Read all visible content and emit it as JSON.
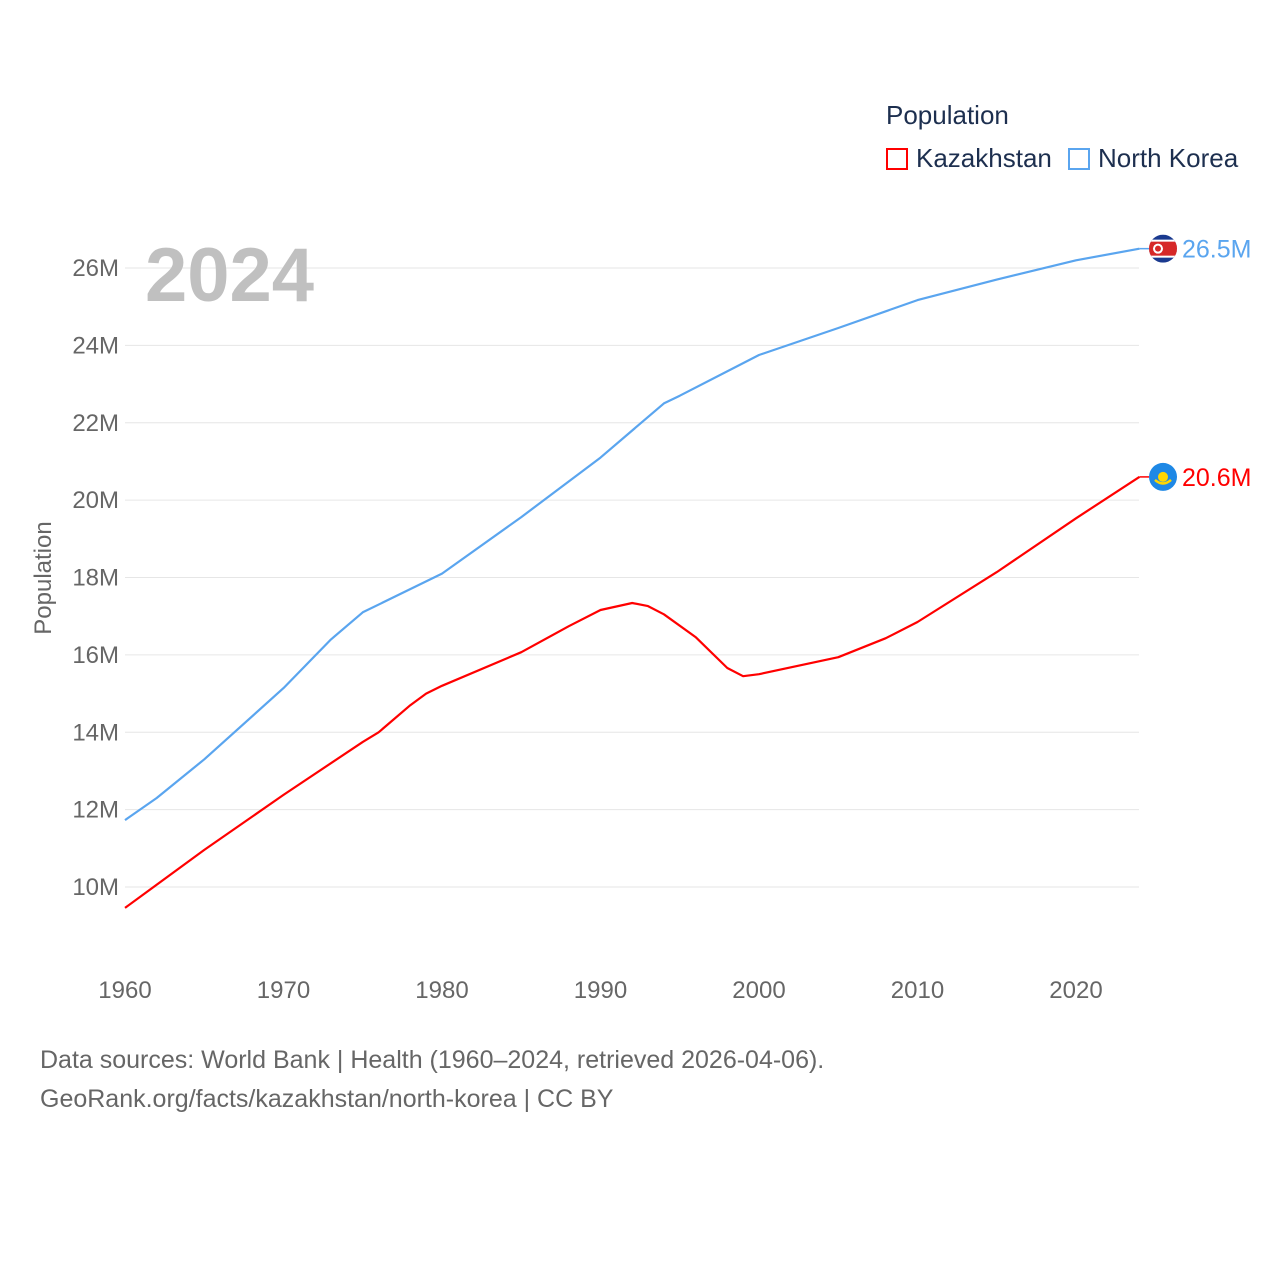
{
  "chart_data": {
    "type": "line",
    "title": "",
    "year_label": "2024",
    "xlabel": "",
    "ylabel": "Population",
    "xlim": [
      1960,
      2024
    ],
    "ylim": [
      9,
      27
    ],
    "x_ticks": [
      "1960",
      "1970",
      "1980",
      "1990",
      "2000",
      "2010",
      "2020"
    ],
    "y_ticks": [
      "10M",
      "12M",
      "14M",
      "16M",
      "18M",
      "20M",
      "22M",
      "24M",
      "26M"
    ],
    "grid": "horizontal",
    "legend": {
      "title": "Population",
      "placement": "top-right"
    },
    "series": [
      {
        "name": "Kazakhstan",
        "color": "#ff0000",
        "end_label": "20.6M",
        "flag": "kazakhstan-flag",
        "points": [
          [
            1960,
            9.46
          ],
          [
            1965,
            10.96
          ],
          [
            1970,
            12.38
          ],
          [
            1975,
            13.75
          ],
          [
            1976,
            14.0
          ],
          [
            1978,
            14.7
          ],
          [
            1979,
            15.0
          ],
          [
            1980,
            15.2
          ],
          [
            1985,
            16.07
          ],
          [
            1988,
            16.74
          ],
          [
            1990,
            17.16
          ],
          [
            1992,
            17.34
          ],
          [
            1993,
            17.26
          ],
          [
            1994,
            17.05
          ],
          [
            1996,
            16.46
          ],
          [
            1998,
            15.66
          ],
          [
            1999,
            15.45
          ],
          [
            2000,
            15.5
          ],
          [
            2005,
            15.94
          ],
          [
            2008,
            16.43
          ],
          [
            2010,
            16.85
          ],
          [
            2015,
            18.14
          ],
          [
            2020,
            19.53
          ],
          [
            2024,
            20.6
          ]
        ]
      },
      {
        "name": "North Korea",
        "color": "#5aa5ef",
        "end_label": "26.5M",
        "flag": "north-korea-flag",
        "points": [
          [
            1960,
            11.73
          ],
          [
            1962,
            12.3
          ],
          [
            1965,
            13.3
          ],
          [
            1970,
            15.14
          ],
          [
            1973,
            16.4
          ],
          [
            1975,
            17.1
          ],
          [
            1980,
            18.1
          ],
          [
            1985,
            19.56
          ],
          [
            1990,
            21.1
          ],
          [
            1994,
            22.5
          ],
          [
            1995,
            22.7
          ],
          [
            2000,
            23.75
          ],
          [
            2005,
            24.45
          ],
          [
            2010,
            25.17
          ],
          [
            2015,
            25.7
          ],
          [
            2020,
            26.2
          ],
          [
            2024,
            26.5
          ]
        ]
      }
    ]
  },
  "footer": {
    "line1": "Data sources: World Bank | Health (1960–2024, retrieved 2026-04-06).",
    "line2": "GeoRank.org/facts/kazakhstan/north-korea | CC BY"
  }
}
